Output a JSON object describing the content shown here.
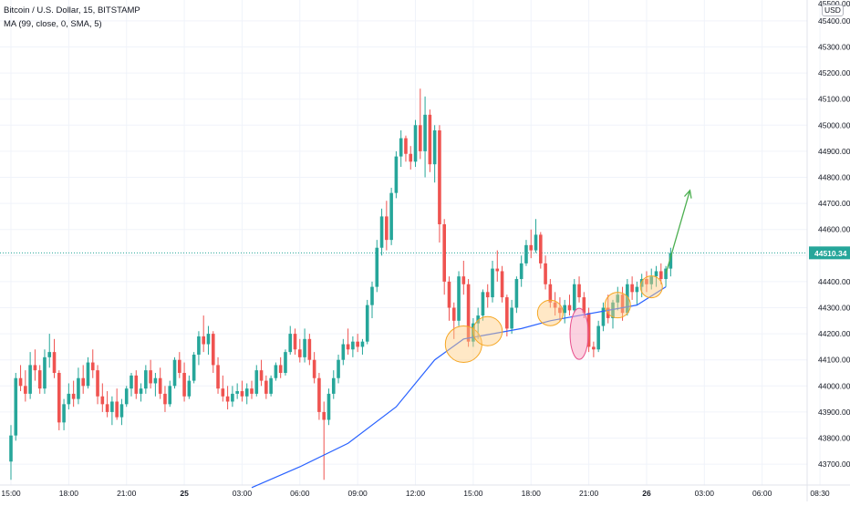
{
  "legend": {
    "symbol": "Bitcoin / U.S. Dollar, 15, BITSTAMP",
    "indicator": "MA (99, close, 0, SMA, 5)"
  },
  "currency": "USD",
  "last_price_label": "44510.34",
  "colors": {
    "up": "#26a69a",
    "down": "#ef5350",
    "ma": "#2962ff",
    "last_line": "#26a69a",
    "circle_fill": "#ffcc80",
    "circle_stroke": "#f5a623",
    "ellipse_fill": "#f8a5c2",
    "ellipse_stroke": "#e84f8c",
    "arrow": "#4caf50"
  },
  "chart_data": {
    "type": "candlestick",
    "title": "Bitcoin / U.S. Dollar, 15, BITSTAMP",
    "ylim": [
      43620,
      45480
    ],
    "grid": true,
    "y_ticks": [
      43700,
      43800,
      43900,
      44000,
      44100,
      44200,
      44300,
      44400,
      44500,
      44600,
      44700,
      44800,
      44900,
      45000,
      45100,
      45200,
      45300,
      45400
    ],
    "y_tick_labels": [
      "43700.00",
      "43800.00",
      "43900.00",
      "44000.00",
      "44100.00",
      "44200.00",
      "44300.00",
      "44400.00",
      "44500.00",
      "44600.00",
      "44700.00",
      "44800.00",
      "44900.00",
      "45000.00",
      "45100.00",
      "45200.00",
      "45300.00",
      "45400.00"
    ],
    "top_partial_label": "45500.00",
    "x_tick_labels": [
      "15:00",
      "18:00",
      "21:00",
      "25",
      "03:00",
      "06:00",
      "09:00",
      "12:00",
      "15:00",
      "18:00",
      "21:00",
      "26",
      "03:00",
      "06:00",
      "08:30"
    ],
    "x_tick_index": [
      0,
      12,
      24,
      36,
      48,
      60,
      72,
      84,
      96,
      108,
      120,
      132,
      144,
      156,
      168
    ],
    "last_price": 44510.34,
    "ohlc": [
      [
        43710,
        43850,
        43640,
        43810
      ],
      [
        43810,
        44050,
        43790,
        44030
      ],
      [
        44030,
        44080,
        43980,
        44000
      ],
      [
        44000,
        44060,
        43940,
        43970
      ],
      [
        43970,
        44130,
        43950,
        44080
      ],
      [
        44080,
        44140,
        44020,
        44060
      ],
      [
        44060,
        44080,
        43970,
        43990
      ],
      [
        43990,
        44140,
        43970,
        44110
      ],
      [
        44110,
        44200,
        44070,
        44130
      ],
      [
        44130,
        44180,
        44030,
        44050
      ],
      [
        44050,
        44060,
        43830,
        43860
      ],
      [
        43860,
        43950,
        43830,
        43930
      ],
      [
        43930,
        44010,
        43910,
        43970
      ],
      [
        43970,
        44020,
        43920,
        43950
      ],
      [
        43950,
        44070,
        43930,
        44030
      ],
      [
        44030,
        44080,
        43970,
        44000
      ],
      [
        44000,
        44110,
        43990,
        44090
      ],
      [
        44090,
        44140,
        44030,
        44060
      ],
      [
        44060,
        44080,
        43930,
        43960
      ],
      [
        43960,
        44010,
        43900,
        43930
      ],
      [
        43930,
        43980,
        43880,
        43900
      ],
      [
        43900,
        43960,
        43850,
        43940
      ],
      [
        43940,
        43990,
        43870,
        43880
      ],
      [
        43880,
        43950,
        43850,
        43930
      ],
      [
        43930,
        44000,
        43920,
        43990
      ],
      [
        43990,
        44050,
        43960,
        44040
      ],
      [
        44040,
        44060,
        43950,
        43970
      ],
      [
        43970,
        44010,
        43940,
        43990
      ],
      [
        43990,
        44080,
        43970,
        44060
      ],
      [
        44060,
        44100,
        43990,
        44010
      ],
      [
        44010,
        44050,
        43960,
        44030
      ],
      [
        44030,
        44070,
        43950,
        43970
      ],
      [
        43970,
        44000,
        43900,
        43930
      ],
      [
        43930,
        44020,
        43920,
        44000
      ],
      [
        44000,
        44110,
        43990,
        44100
      ],
      [
        44100,
        44130,
        44030,
        44050
      ],
      [
        44050,
        44090,
        43940,
        43960
      ],
      [
        43960,
        44040,
        43950,
        44020
      ],
      [
        44020,
        44130,
        44010,
        44120
      ],
      [
        44120,
        44210,
        44080,
        44190
      ],
      [
        44190,
        44270,
        44130,
        44160
      ],
      [
        44160,
        44230,
        44120,
        44200
      ],
      [
        44200,
        44210,
        44050,
        44080
      ],
      [
        44080,
        44110,
        43970,
        43990
      ],
      [
        43990,
        44040,
        43940,
        43960
      ],
      [
        43960,
        44000,
        43910,
        43940
      ],
      [
        43940,
        44000,
        43920,
        43970
      ],
      [
        43970,
        44010,
        43950,
        43980
      ],
      [
        43980,
        44020,
        43940,
        43960
      ],
      [
        43960,
        44010,
        43930,
        43990
      ],
      [
        43990,
        44020,
        43950,
        43970
      ],
      [
        43970,
        44080,
        43960,
        44060
      ],
      [
        44060,
        44100,
        44000,
        44020
      ],
      [
        44020,
        44040,
        43950,
        43970
      ],
      [
        43970,
        44040,
        43960,
        44030
      ],
      [
        44030,
        44090,
        44020,
        44080
      ],
      [
        44080,
        44110,
        44030,
        44050
      ],
      [
        44050,
        44140,
        44040,
        44130
      ],
      [
        44130,
        44230,
        44120,
        44200
      ],
      [
        44200,
        44220,
        44120,
        44140
      ],
      [
        44140,
        44180,
        44090,
        44110
      ],
      [
        44110,
        44220,
        44090,
        44180
      ],
      [
        44180,
        44200,
        44080,
        44100
      ],
      [
        44100,
        44130,
        44010,
        44030
      ],
      [
        44030,
        44050,
        43870,
        43900
      ],
      [
        43900,
        43940,
        43640,
        43870
      ],
      [
        43870,
        43990,
        43850,
        43970
      ],
      [
        43970,
        44060,
        43950,
        44030
      ],
      [
        44030,
        44120,
        44010,
        44100
      ],
      [
        44100,
        44180,
        44080,
        44160
      ],
      [
        44160,
        44220,
        44120,
        44140
      ],
      [
        44140,
        44190,
        44110,
        44170
      ],
      [
        44170,
        44200,
        44130,
        44150
      ],
      [
        44150,
        44180,
        44120,
        44170
      ],
      [
        44170,
        44330,
        44160,
        44310
      ],
      [
        44310,
        44400,
        44260,
        44380
      ],
      [
        44380,
        44560,
        44360,
        44530
      ],
      [
        44530,
        44680,
        44500,
        44650
      ],
      [
        44650,
        44710,
        44520,
        44560
      ],
      [
        44560,
        44760,
        44540,
        44740
      ],
      [
        44740,
        44900,
        44720,
        44880
      ],
      [
        44880,
        44980,
        44840,
        44950
      ],
      [
        44950,
        44960,
        44860,
        44890
      ],
      [
        44890,
        44920,
        44830,
        44860
      ],
      [
        44860,
        45020,
        44840,
        45000
      ],
      [
        45000,
        45140,
        44870,
        44900
      ],
      [
        44900,
        45110,
        44800,
        45040
      ],
      [
        45040,
        45060,
        44820,
        44850
      ],
      [
        44850,
        45000,
        44780,
        44980
      ],
      [
        44980,
        45000,
        44550,
        44620
      ],
      [
        44620,
        44640,
        44350,
        44400
      ],
      [
        44400,
        44420,
        44250,
        44300
      ],
      [
        44300,
        44320,
        44180,
        44250
      ],
      [
        44250,
        44440,
        44230,
        44420
      ],
      [
        44420,
        44480,
        44350,
        44390
      ],
      [
        44390,
        44410,
        44150,
        44170
      ],
      [
        44170,
        44260,
        44150,
        44240
      ],
      [
        44240,
        44300,
        44180,
        44270
      ],
      [
        44270,
        44370,
        44250,
        44360
      ],
      [
        44360,
        44390,
        44300,
        44340
      ],
      [
        44340,
        44480,
        44320,
        44450
      ],
      [
        44450,
        44520,
        44400,
        44440
      ],
      [
        44440,
        44460,
        44320,
        44340
      ],
      [
        44340,
        44350,
        44190,
        44220
      ],
      [
        44220,
        44330,
        44200,
        44300
      ],
      [
        44300,
        44420,
        44280,
        44410
      ],
      [
        44410,
        44500,
        44380,
        44470
      ],
      [
        44470,
        44560,
        44460,
        44540
      ],
      [
        44540,
        44600,
        44490,
        44520
      ],
      [
        44520,
        44640,
        44510,
        44580
      ],
      [
        44580,
        44590,
        44450,
        44470
      ],
      [
        44470,
        44500,
        44370,
        44390
      ],
      [
        44390,
        44410,
        44300,
        44320
      ],
      [
        44320,
        44360,
        44270,
        44300
      ],
      [
        44300,
        44340,
        44250,
        44280
      ],
      [
        44280,
        44330,
        44240,
        44310
      ],
      [
        44310,
        44350,
        44270,
        44290
      ],
      [
        44290,
        44410,
        44280,
        44390
      ],
      [
        44390,
        44420,
        44320,
        44340
      ],
      [
        44340,
        44360,
        44260,
        44280
      ],
      [
        44280,
        44300,
        44130,
        44150
      ],
      [
        44150,
        44170,
        44110,
        44140
      ],
      [
        44140,
        44250,
        44130,
        44230
      ],
      [
        44230,
        44320,
        44210,
        44300
      ],
      [
        44300,
        44350,
        44240,
        44260
      ],
      [
        44260,
        44330,
        44220,
        44320
      ],
      [
        44320,
        44380,
        44290,
        44350
      ],
      [
        44350,
        44380,
        44250,
        44280
      ],
      [
        44280,
        44410,
        44270,
        44390
      ],
      [
        44390,
        44420,
        44330,
        44360
      ],
      [
        44360,
        44400,
        44310,
        44380
      ],
      [
        44380,
        44430,
        44340,
        44410
      ],
      [
        44410,
        44440,
        44360,
        44390
      ],
      [
        44390,
        44450,
        44370,
        44420
      ],
      [
        44420,
        44460,
        44380,
        44440
      ],
      [
        44440,
        44470,
        44390,
        44410
      ],
      [
        44410,
        44460,
        44380,
        44450
      ],
      [
        44450,
        44530,
        44420,
        44510
      ]
    ],
    "ma_99": {
      "index": [
        50,
        60,
        70,
        80,
        88,
        94,
        100,
        106,
        112,
        118,
        124,
        130,
        136
      ],
      "values": [
        43610,
        43690,
        43780,
        43920,
        44100,
        44180,
        44200,
        44220,
        44250,
        44270,
        44290,
        44310,
        44380
      ]
    },
    "annotations": {
      "support_circles": [
        {
          "index": 94,
          "price": 44160
        },
        {
          "index": 99,
          "price": 44210
        },
        {
          "index": 112,
          "price": 44280
        },
        {
          "index": 126,
          "price": 44310
        },
        {
          "index": 133,
          "price": 44380
        }
      ],
      "wick_ellipse": {
        "index": 118,
        "price": 44200
      },
      "arrow": {
        "from": {
          "index": 136,
          "price": 44430
        },
        "to": {
          "index": 141,
          "price": 44750
        }
      }
    }
  }
}
